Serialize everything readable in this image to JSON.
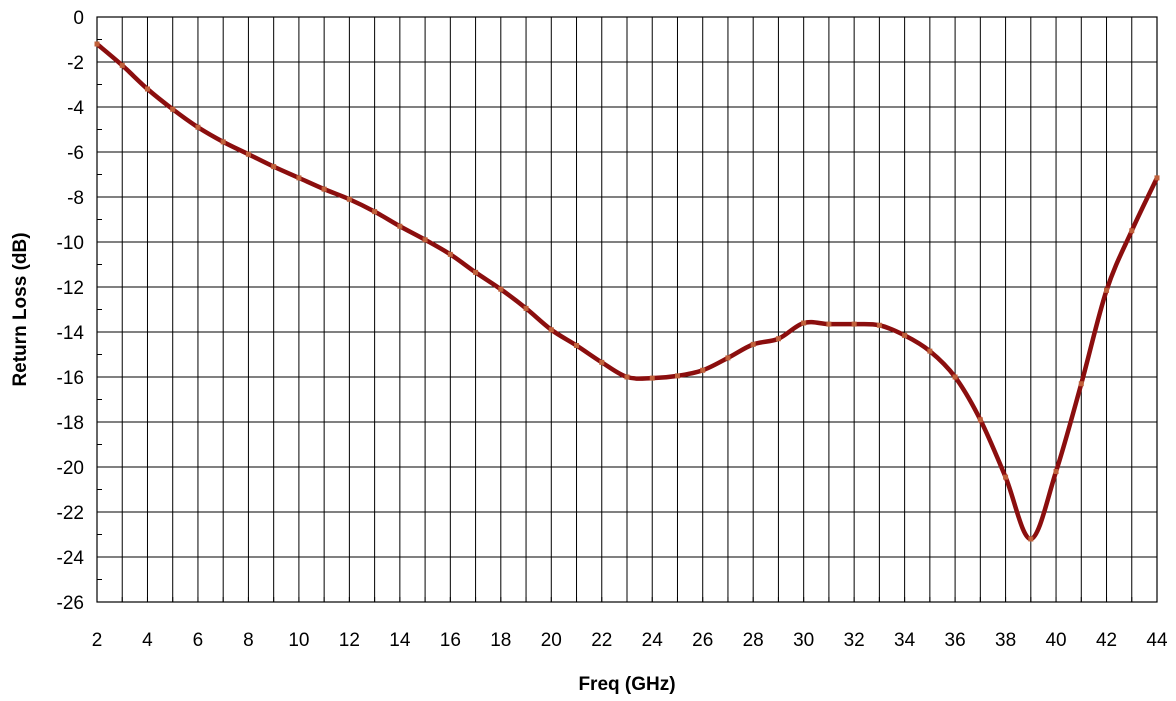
{
  "chart_data": {
    "type": "line",
    "title": "",
    "xlabel": "Freq (GHz)",
    "ylabel": "Return Loss (dB)",
    "xlim": [
      2,
      44
    ],
    "ylim": [
      -26,
      0
    ],
    "x_ticks": [
      "2",
      "4",
      "6",
      "8",
      "10",
      "12",
      "14",
      "16",
      "18",
      "20",
      "22",
      "24",
      "26",
      "28",
      "30",
      "32",
      "34",
      "36",
      "38",
      "40",
      "42",
      "44"
    ],
    "y_ticks": [
      "0",
      "-2",
      "-4",
      "-6",
      "-8",
      "-10",
      "-12",
      "-14",
      "-16",
      "-18",
      "-20",
      "-22",
      "-24",
      "-26"
    ],
    "grid": true,
    "series": [
      {
        "color": "#8B0E0E",
        "marker_color": "#C0603A",
        "x": [
          2,
          3,
          4,
          5,
          6,
          7,
          8,
          9,
          10,
          11,
          12,
          13,
          14,
          15,
          16,
          17,
          18,
          19,
          20,
          21,
          22,
          23,
          24,
          25,
          26,
          27,
          28,
          29,
          30,
          31,
          32,
          33,
          34,
          35,
          36,
          37,
          38,
          39,
          40,
          41,
          42,
          43,
          44
        ],
        "y": [
          -1.2,
          -2.15,
          -3.2,
          -4.1,
          -4.9,
          -5.55,
          -6.1,
          -6.65,
          -7.15,
          -7.65,
          -8.1,
          -8.65,
          -9.3,
          -9.9,
          -10.55,
          -11.35,
          -12.1,
          -12.95,
          -13.9,
          -14.6,
          -15.35,
          -16.0,
          -16.05,
          -15.95,
          -15.7,
          -15.15,
          -14.55,
          -14.3,
          -13.6,
          -13.65,
          -13.65,
          -13.7,
          -14.15,
          -14.85,
          -16.0,
          -17.9,
          -20.45,
          -23.2,
          -20.2,
          -16.3,
          -12.15,
          -9.5,
          -7.15
        ]
      }
    ]
  }
}
